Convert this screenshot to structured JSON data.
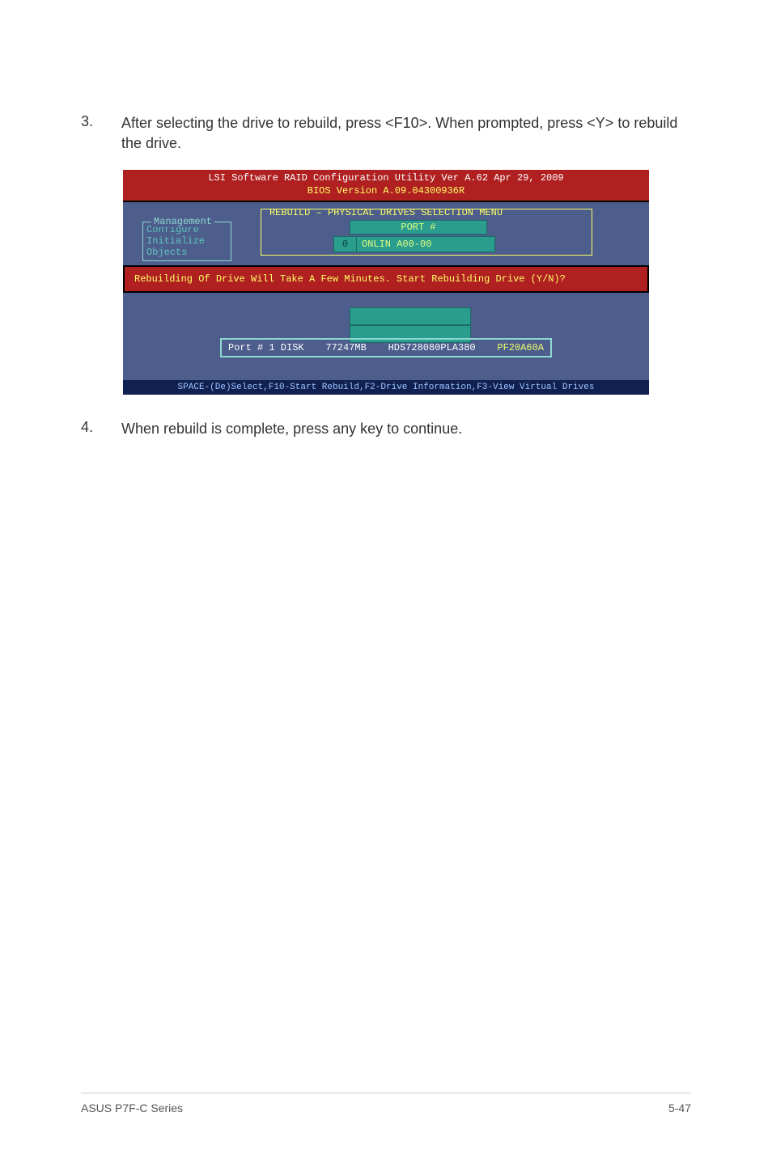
{
  "step3": {
    "num": "3.",
    "text": "After selecting the drive to rebuild, press <F10>. When prompted, press <Y> to rebuild the drive."
  },
  "bios": {
    "header_line1": "LSI Software RAID Configuration Utility Ver A.62 Apr 29, 2009",
    "header_line2": "BIOS Version   A.09.04300936R",
    "rebuild_title": "REBUILD – PHYSICAL DRIVES SELECTION MENU",
    "mgmt_title": "Management",
    "mgmt_items": [
      "Configure",
      "Initialize",
      "Objects"
    ],
    "port_header": "PORT #",
    "onlin_num": "0",
    "onlin_text": "ONLIN A00-00",
    "rebuild_banner": "Rebuilding Of Drive Will Take A Few Minutes. Start Rebuilding Drive (Y/N)?",
    "port_info": {
      "a": "Port # 1 DISK",
      "b": "77247MB",
      "c": "HDS728080PLA380",
      "d": "PF20A60A"
    },
    "footer": "SPACE-(De)Select,F10-Start Rebuild,F2-Drive Information,F3-View Virtual Drives"
  },
  "step4": {
    "num": "4.",
    "text": "When rebuild is complete, press any key to continue."
  },
  "footer": {
    "left": "ASUS P7F-C Series",
    "right": "5-47"
  },
  "colors": {
    "bios_bg": "#4d5d8c",
    "red_bar": "#b02020",
    "teal": "#2a9d8f",
    "yellow": "#ffff66",
    "footer_bg": "#102050"
  }
}
